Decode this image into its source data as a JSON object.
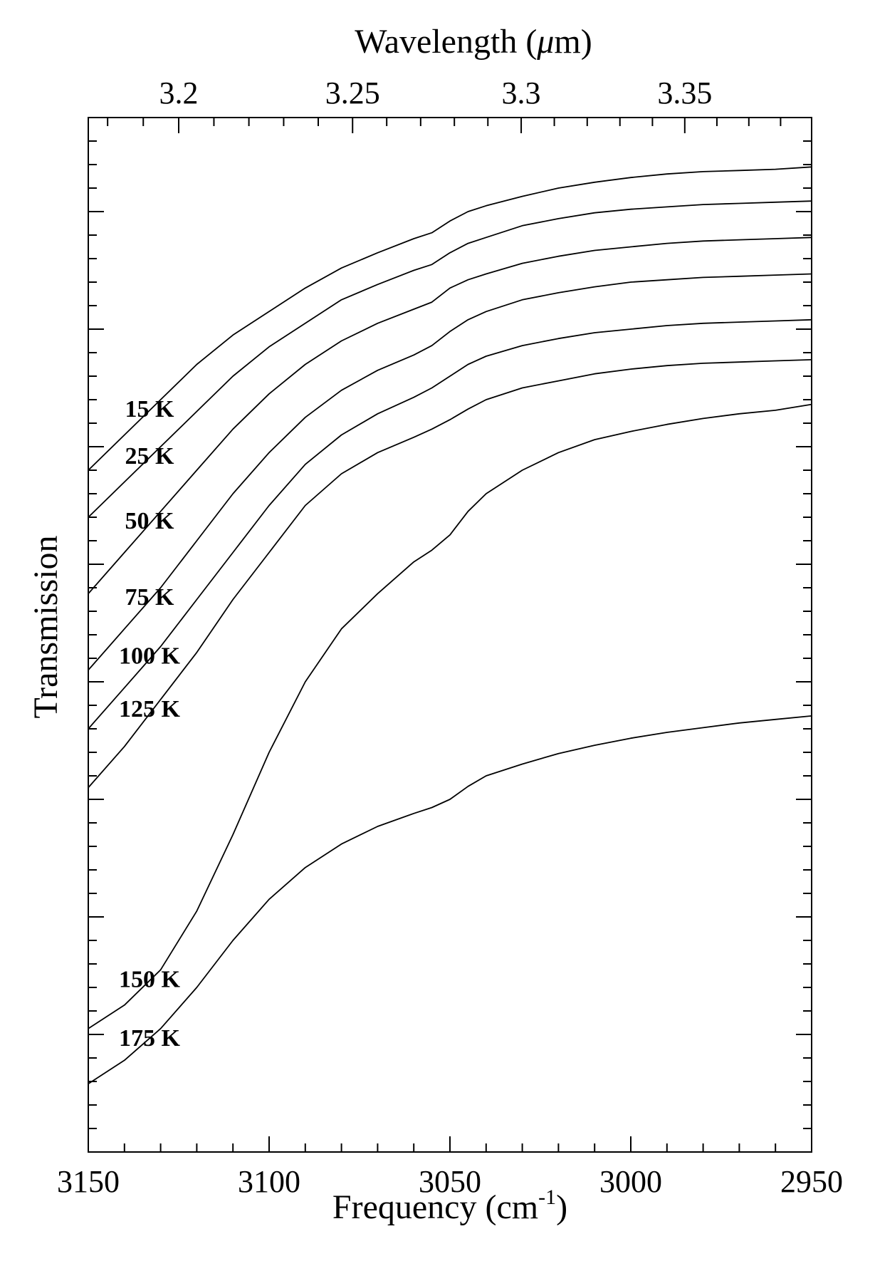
{
  "chart_data": {
    "type": "line",
    "title": "",
    "xlabel_main": "Frequency (cm",
    "xlabel_sup": "-1",
    "xlabel_close": ")",
    "x2label_main": "Wavelength (",
    "x2label_mu": "μ",
    "x2label_close": "m)",
    "ylabel": "Transmission",
    "xlim": [
      3150,
      2950
    ],
    "x_ticks": [
      "3150",
      "3100",
      "3050",
      "3000",
      "2950"
    ],
    "x_tick_values": [
      3150,
      3100,
      3050,
      3000,
      2950
    ],
    "x2_ticks": [
      "3.2",
      "3.25",
      "3.3",
      "3.35"
    ],
    "x2_tick_values": [
      3.2,
      3.25,
      3.3,
      3.35
    ],
    "y_tick_labels_shown": false,
    "grid": false,
    "series": [
      {
        "name": "15 K",
        "x": [
          3150,
          3140,
          3130,
          3120,
          3110,
          3100,
          3090,
          3080,
          3070,
          3060,
          3055,
          3050,
          3045,
          3040,
          3030,
          3020,
          3010,
          3000,
          2990,
          2980,
          2970,
          2960,
          2950
        ],
        "y": [
          0.8,
          0.83,
          0.86,
          0.89,
          0.915,
          0.935,
          0.955,
          0.972,
          0.985,
          0.997,
          1.002,
          1.012,
          1.02,
          1.025,
          1.033,
          1.04,
          1.045,
          1.049,
          1.052,
          1.054,
          1.055,
          1.056,
          1.058
        ]
      },
      {
        "name": "25 K",
        "x": [
          3150,
          3140,
          3130,
          3120,
          3110,
          3100,
          3090,
          3080,
          3070,
          3060,
          3055,
          3050,
          3045,
          3040,
          3030,
          3020,
          3010,
          3000,
          2990,
          2980,
          2970,
          2960,
          2950
        ],
        "y": [
          0.76,
          0.79,
          0.82,
          0.85,
          0.88,
          0.905,
          0.925,
          0.945,
          0.958,
          0.97,
          0.975,
          0.985,
          0.993,
          0.998,
          1.008,
          1.014,
          1.019,
          1.022,
          1.024,
          1.026,
          1.027,
          1.028,
          1.029
        ]
      },
      {
        "name": "50 K",
        "x": [
          3150,
          3140,
          3130,
          3120,
          3110,
          3100,
          3090,
          3080,
          3070,
          3060,
          3055,
          3050,
          3045,
          3040,
          3030,
          3020,
          3010,
          3000,
          2990,
          2980,
          2970,
          2960,
          2950
        ],
        "y": [
          0.695,
          0.73,
          0.765,
          0.8,
          0.835,
          0.865,
          0.89,
          0.91,
          0.925,
          0.937,
          0.943,
          0.955,
          0.962,
          0.967,
          0.976,
          0.982,
          0.987,
          0.99,
          0.993,
          0.995,
          0.996,
          0.997,
          0.998
        ]
      },
      {
        "name": "75 K",
        "x": [
          3150,
          3140,
          3130,
          3120,
          3110,
          3100,
          3090,
          3080,
          3070,
          3060,
          3055,
          3050,
          3045,
          3040,
          3030,
          3020,
          3010,
          3000,
          2990,
          2980,
          2970,
          2960,
          2950
        ],
        "y": [
          0.63,
          0.665,
          0.7,
          0.74,
          0.78,
          0.815,
          0.845,
          0.868,
          0.885,
          0.898,
          0.906,
          0.918,
          0.928,
          0.935,
          0.945,
          0.951,
          0.956,
          0.96,
          0.962,
          0.964,
          0.965,
          0.966,
          0.967
        ]
      },
      {
        "name": "100 K",
        "x": [
          3150,
          3140,
          3130,
          3120,
          3110,
          3100,
          3090,
          3080,
          3070,
          3060,
          3055,
          3050,
          3045,
          3040,
          3030,
          3020,
          3010,
          3000,
          2990,
          2980,
          2970,
          2960,
          2950
        ],
        "y": [
          0.58,
          0.615,
          0.65,
          0.69,
          0.73,
          0.77,
          0.805,
          0.83,
          0.848,
          0.862,
          0.87,
          0.88,
          0.89,
          0.897,
          0.906,
          0.912,
          0.917,
          0.92,
          0.923,
          0.925,
          0.926,
          0.927,
          0.928
        ]
      },
      {
        "name": "125 K",
        "x": [
          3150,
          3140,
          3130,
          3120,
          3110,
          3100,
          3090,
          3080,
          3070,
          3060,
          3055,
          3050,
          3045,
          3040,
          3030,
          3020,
          3010,
          3000,
          2990,
          2980,
          2970,
          2960,
          2950
        ],
        "y": [
          0.53,
          0.565,
          0.605,
          0.645,
          0.69,
          0.73,
          0.77,
          0.797,
          0.815,
          0.828,
          0.835,
          0.843,
          0.852,
          0.86,
          0.87,
          0.876,
          0.882,
          0.886,
          0.889,
          0.891,
          0.892,
          0.893,
          0.894
        ]
      },
      {
        "name": "150 K",
        "x": [
          3150,
          3140,
          3130,
          3120,
          3110,
          3100,
          3090,
          3080,
          3070,
          3060,
          3055,
          3050,
          3045,
          3040,
          3030,
          3020,
          3010,
          3000,
          2990,
          2980,
          2970,
          2960,
          2950
        ],
        "y": [
          0.325,
          0.345,
          0.375,
          0.425,
          0.49,
          0.56,
          0.62,
          0.665,
          0.695,
          0.722,
          0.732,
          0.745,
          0.765,
          0.78,
          0.8,
          0.815,
          0.826,
          0.833,
          0.839,
          0.844,
          0.848,
          0.851,
          0.856
        ]
      },
      {
        "name": "175 K",
        "x": [
          3150,
          3140,
          3130,
          3120,
          3110,
          3100,
          3090,
          3080,
          3070,
          3060,
          3055,
          3050,
          3045,
          3040,
          3030,
          3020,
          3010,
          3000,
          2990,
          2980,
          2970,
          2960,
          2950
        ],
        "y": [
          0.278,
          0.298,
          0.325,
          0.36,
          0.4,
          0.435,
          0.462,
          0.482,
          0.497,
          0.508,
          0.513,
          0.52,
          0.531,
          0.54,
          0.55,
          0.559,
          0.566,
          0.572,
          0.577,
          0.581,
          0.585,
          0.588,
          0.591
        ]
      }
    ]
  }
}
